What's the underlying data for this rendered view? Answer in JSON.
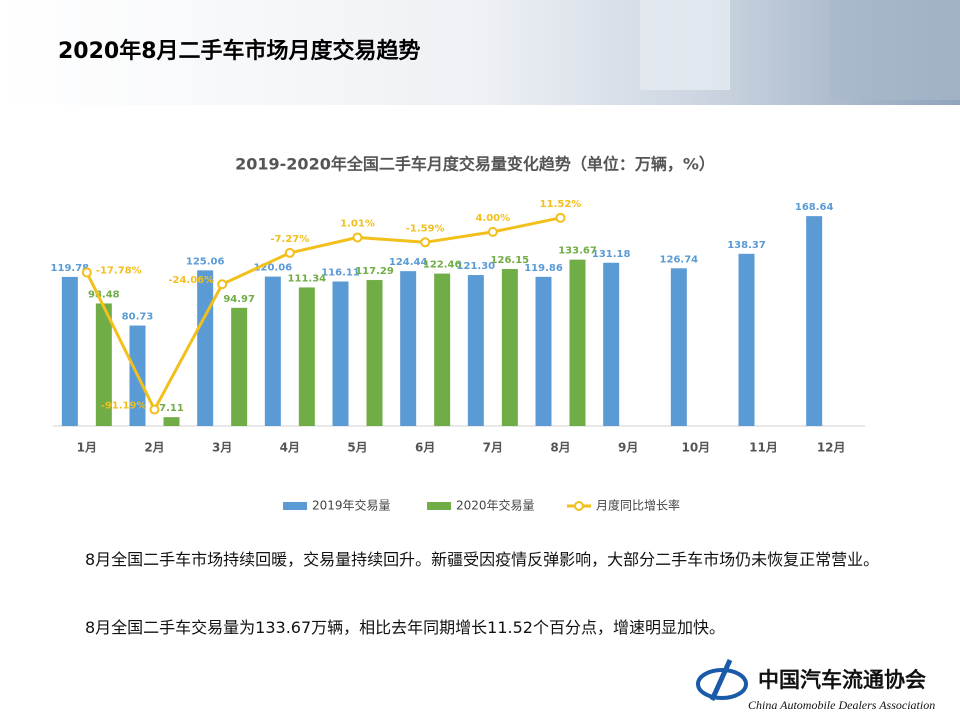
{
  "header": {
    "title": "2020年8月二手车市场月度交易趋势"
  },
  "chart_data": {
    "type": "bar_line",
    "title": "2019-2020年全国二手车月度交易量变化趋势（单位：万辆，%）",
    "categories": [
      "1月",
      "2月",
      "3月",
      "4月",
      "5月",
      "6月",
      "7月",
      "8月",
      "9月",
      "10月",
      "11月",
      "12月"
    ],
    "ylim": [
      0,
      180
    ],
    "y2lim": [
      -100,
      20
    ],
    "legend": "bottom",
    "series": [
      {
        "name": "2019年交易量",
        "type": "bar",
        "color": "#5b9bd5",
        "values": [
          119.78,
          80.73,
          125.06,
          120.06,
          116.11,
          124.44,
          121.3,
          119.86,
          131.18,
          126.74,
          138.37,
          168.64
        ],
        "value_labels": [
          "119.78",
          "80.73",
          "125.06",
          "120.06",
          "116.11",
          "124.44",
          "121.30",
          "119.86",
          "131.18",
          "126.74",
          "138.37",
          "168.64"
        ]
      },
      {
        "name": "2020年交易量",
        "type": "bar",
        "color": "#70ad47",
        "values": [
          98.48,
          7.11,
          94.97,
          111.34,
          117.29,
          122.46,
          126.15,
          133.67,
          null,
          null,
          null,
          null
        ],
        "value_labels": [
          "98.48",
          "7.11",
          "94.97",
          "111.34",
          "117.29",
          "122.46",
          "126.15",
          "133.67",
          null,
          null,
          null,
          null
        ]
      },
      {
        "name": "月度同比增长率",
        "type": "line",
        "axis": "y2",
        "color": "#f2bf1b",
        "values": [
          -17.78,
          -91.19,
          -24.06,
          -7.27,
          1.01,
          -1.59,
          4.0,
          11.52,
          null,
          null,
          null,
          null
        ],
        "value_labels": [
          "-17.78%",
          "-91.19%",
          "-24.06%",
          "-7.27%",
          "1.01%",
          "-1.59%",
          "4.00%",
          "11.52%",
          null,
          null,
          null,
          null
        ]
      }
    ]
  },
  "body": [
    "8月全国二手车市场持续回暖，交易量持续回升。新疆受因疫情反弹影响，大部分二手车市场仍未恢复正常营业。",
    "8月全国二手车交易量为133.67万辆，相比去年同期增长11.52个百分点，增速明显加快。"
  ],
  "logo": {
    "name": "中国汽车流通协会",
    "name_en": "China Automobile Dealers Association"
  }
}
